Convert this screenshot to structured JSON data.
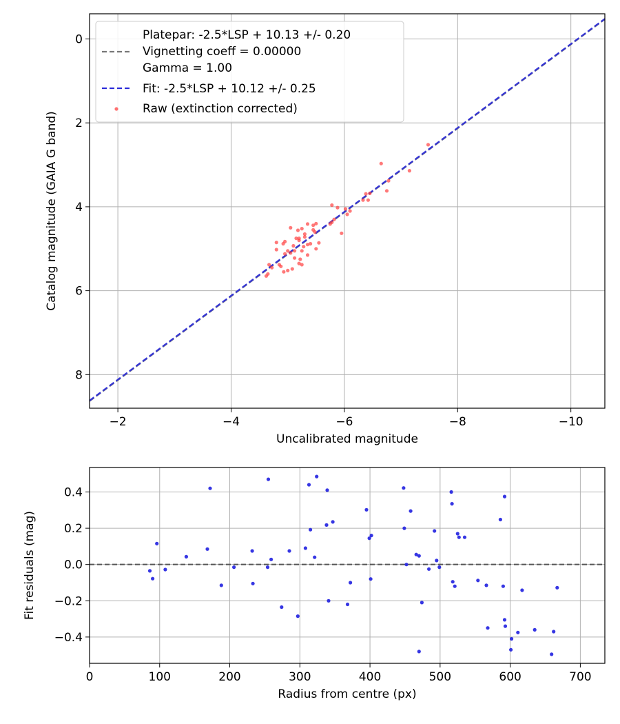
{
  "chart_data": [
    {
      "type": "scatter",
      "xlabel": "Uncalibrated magnitude",
      "ylabel": "Catalog magnitude (GAIA G band)",
      "xlim": [
        -1.5,
        -10.6
      ],
      "ylim": [
        8.8,
        -0.6
      ],
      "x_inverted": true,
      "y_inverted": true,
      "grid": true,
      "xticks": [
        -2,
        -4,
        -6,
        -8,
        -10
      ],
      "xtick_labels": [
        "−2",
        "−4",
        "−6",
        "−8",
        "−10"
      ],
      "yticks": [
        0,
        2,
        4,
        6,
        8
      ],
      "ytick_labels": [
        "0",
        "2",
        "4",
        "6",
        "8"
      ],
      "legend": {
        "placement": "upper-left",
        "entries": [
          {
            "label": "Platepar: -2.5*LSP + 10.13 +/- 0.20",
            "marker": "none"
          },
          {
            "label": "Vignetting coeff = 0.00000",
            "marker": "dashed-line",
            "color": "#777777"
          },
          {
            "label": "Gamma = 1.00",
            "marker": "none"
          },
          {
            "label": "Fit: -2.5*LSP + 10.12 +/- 0.25",
            "marker": "dashed-line",
            "color": "#2b2bd9"
          },
          {
            "label": "Raw (extinction corrected)",
            "marker": "dot",
            "color": "#ff4040"
          }
        ]
      },
      "series": [
        {
          "name": "Platepar: -2.5*LSP + 10.13 +/- 0.20",
          "kind": "line",
          "style": "dashed",
          "color": "#777777",
          "x": [
            -1.5,
            -10.6
          ],
          "y": [
            8.63,
            -0.47
          ]
        },
        {
          "name": "Fit: -2.5*LSP + 10.12 +/- 0.25",
          "kind": "line",
          "style": "dashed",
          "color": "#2b2bd9",
          "x": [
            -1.5,
            -10.6
          ],
          "y": [
            8.62,
            -0.48
          ]
        },
        {
          "name": "Raw (extinction corrected)",
          "kind": "scatter",
          "color": "#ff4040",
          "points": [
            [
              -7.48,
              2.52
            ],
            [
              -6.65,
              2.97
            ],
            [
              -7.15,
              3.14
            ],
            [
              -6.78,
              3.38
            ],
            [
              -6.75,
              3.62
            ],
            [
              -6.45,
              3.68
            ],
            [
              -6.38,
              3.69
            ],
            [
              -6.42,
              3.84
            ],
            [
              -6.33,
              3.84
            ],
            [
              -6.1,
              4.1
            ],
            [
              -6.05,
              4.18
            ],
            [
              -6.02,
              4.05
            ],
            [
              -5.88,
              4.02
            ],
            [
              -5.78,
              3.96
            ],
            [
              -5.82,
              4.3
            ],
            [
              -5.78,
              4.37
            ],
            [
              -5.75,
              4.41
            ],
            [
              -5.95,
              4.63
            ],
            [
              -5.5,
              4.4
            ],
            [
              -5.45,
              4.44
            ],
            [
              -5.35,
              4.41
            ],
            [
              -5.25,
              4.52
            ],
            [
              -5.18,
              4.56
            ],
            [
              -5.05,
              4.5
            ],
            [
              -5.48,
              4.6
            ],
            [
              -5.3,
              4.65
            ],
            [
              -5.15,
              4.75
            ],
            [
              -5.2,
              4.8
            ],
            [
              -5.35,
              4.9
            ],
            [
              -5.4,
              4.88
            ],
            [
              -5.55,
              4.86
            ],
            [
              -5.5,
              5.0
            ],
            [
              -5.25,
              5.05
            ],
            [
              -4.95,
              4.83
            ],
            [
              -4.92,
              4.88
            ],
            [
              -4.8,
              4.85
            ],
            [
              -5.1,
              4.93
            ],
            [
              -5.0,
              5.05
            ],
            [
              -4.95,
              5.12
            ],
            [
              -4.8,
              5.02
            ],
            [
              -5.05,
              5.1
            ],
            [
              -5.12,
              5.22
            ],
            [
              -5.22,
              5.25
            ],
            [
              -5.25,
              5.38
            ],
            [
              -5.2,
              5.35
            ],
            [
              -5.08,
              5.48
            ],
            [
              -5.0,
              5.52
            ],
            [
              -4.93,
              5.55
            ],
            [
              -4.88,
              5.42
            ],
            [
              -4.85,
              5.38
            ],
            [
              -4.72,
              5.45
            ],
            [
              -4.67,
              5.38
            ],
            [
              -4.65,
              5.6
            ],
            [
              -4.62,
              5.65
            ],
            [
              -5.3,
              4.72
            ],
            [
              -5.35,
              5.15
            ],
            [
              -5.28,
              4.95
            ],
            [
              -5.12,
              5.05
            ],
            [
              -5.2,
              4.75
            ],
            [
              -5.45,
              4.55
            ]
          ]
        }
      ]
    },
    {
      "type": "scatter",
      "xlabel": "Radius from centre (px)",
      "ylabel": "Fit residuals (mag)",
      "xlim": [
        0,
        735
      ],
      "ylim": [
        -0.545,
        0.535
      ],
      "grid": true,
      "xticks": [
        0,
        100,
        200,
        300,
        400,
        500,
        600,
        700
      ],
      "xtick_labels": [
        "0",
        "100",
        "200",
        "300",
        "400",
        "500",
        "600",
        "700"
      ],
      "yticks": [
        -0.4,
        -0.2,
        0.0,
        0.2,
        0.4
      ],
      "ytick_labels": [
        "−0.4",
        "−0.2",
        "0.0",
        "0.2",
        "0.4"
      ],
      "reference_line": {
        "y": 0.0,
        "style": "dashed",
        "color": "#555555"
      },
      "series": [
        {
          "kind": "scatter",
          "color": "#2020e0",
          "points": [
            [
              86,
              -0.035
            ],
            [
              90,
              -0.078
            ],
            [
              96,
              0.115
            ],
            [
              108,
              -0.028
            ],
            [
              138,
              0.043
            ],
            [
              168,
              0.085
            ],
            [
              172,
              0.42
            ],
            [
              188,
              -0.115
            ],
            [
              206,
              -0.015
            ],
            [
              232,
              0.075
            ],
            [
              233,
              -0.105
            ],
            [
              254,
              -0.015
            ],
            [
              255,
              0.47
            ],
            [
              259,
              0.028
            ],
            [
              274,
              -0.235
            ],
            [
              285,
              0.075
            ],
            [
              297,
              -0.285
            ],
            [
              308,
              0.09
            ],
            [
              313,
              0.44
            ],
            [
              315,
              0.192
            ],
            [
              321,
              0.04
            ],
            [
              324,
              0.485
            ],
            [
              338,
              0.218
            ],
            [
              339,
              0.41
            ],
            [
              341,
              -0.2
            ],
            [
              347,
              0.235
            ],
            [
              368,
              -0.22
            ],
            [
              372,
              -0.1
            ],
            [
              395,
              0.302
            ],
            [
              399,
              0.145
            ],
            [
              401,
              -0.08
            ],
            [
              402,
              0.16
            ],
            [
              448,
              0.422
            ],
            [
              449,
              0.2
            ],
            [
              452,
              0.0
            ],
            [
              458,
              0.295
            ],
            [
              466,
              0.055
            ],
            [
              470,
              0.048
            ],
            [
              470,
              -0.48
            ],
            [
              474,
              -0.21
            ],
            [
              484,
              -0.025
            ],
            [
              492,
              0.185
            ],
            [
              495,
              0.022
            ],
            [
              499,
              -0.015
            ],
            [
              516,
              0.4
            ],
            [
              517,
              0.335
            ],
            [
              518,
              -0.095
            ],
            [
              521,
              -0.12
            ],
            [
              525,
              0.17
            ],
            [
              527,
              0.15
            ],
            [
              535,
              0.15
            ],
            [
              554,
              -0.088
            ],
            [
              566,
              -0.115
            ],
            [
              568,
              -0.35
            ],
            [
              586,
              0.248
            ],
            [
              590,
              -0.12
            ],
            [
              592,
              0.375
            ],
            [
              592,
              -0.305
            ],
            [
              593,
              -0.34
            ],
            [
              601,
              -0.47
            ],
            [
              602,
              -0.41
            ],
            [
              611,
              -0.375
            ],
            [
              617,
              -0.142
            ],
            [
              635,
              -0.36
            ],
            [
              659,
              -0.495
            ],
            [
              662,
              -0.37
            ],
            [
              667,
              -0.128
            ]
          ]
        }
      ]
    }
  ]
}
